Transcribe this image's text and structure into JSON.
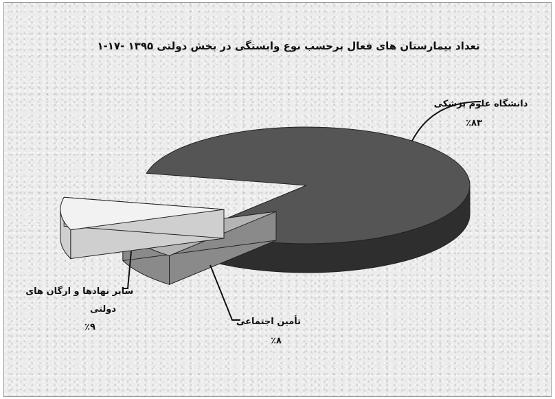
{
  "chart_data": {
    "type": "pie",
    "title": "۱-۱۷- تعداد بیمارستان های فعال برحسب نوع وابستگی در بخش دولتی ۱۳۹۵",
    "categories": [
      "دانشگاه علوم پزشکی",
      "تأمین اجتماعی",
      "سایر نهادها و ارگان های دولتی"
    ],
    "values": [
      83,
      8,
      9
    ],
    "value_labels": [
      "٪۸۳",
      "٪۸",
      "٪۹"
    ],
    "style": "3d-exploded",
    "colors": [
      "#555555",
      "#b4b4b4",
      "#f2f2f2"
    ]
  }
}
